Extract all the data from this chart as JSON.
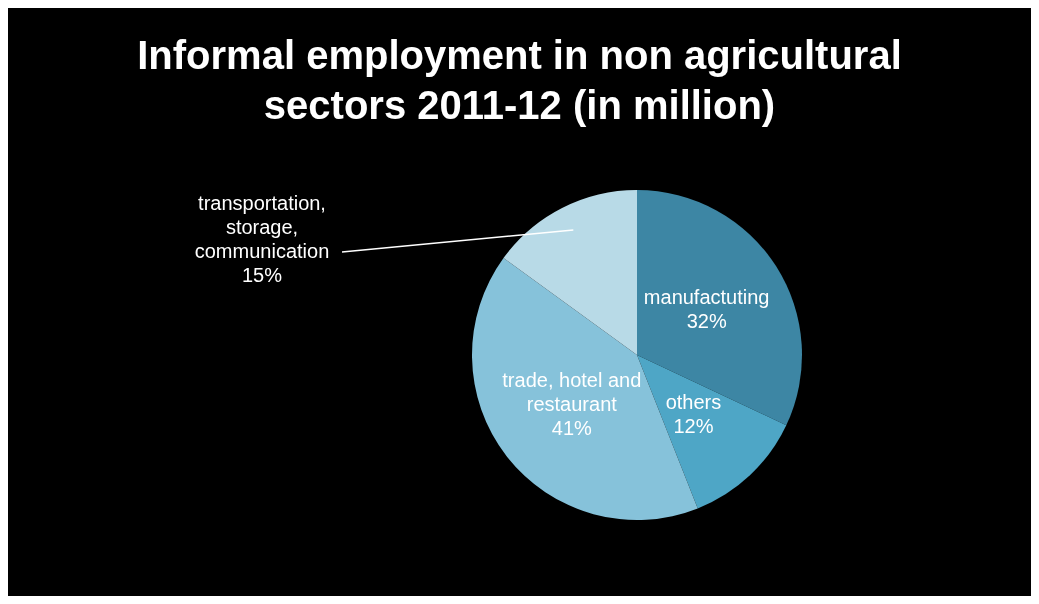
{
  "chart_data": {
    "type": "pie",
    "title": "Informal employment in non agricultural sectors 2011-12 (in million)",
    "categories": [
      "manufactuting",
      "others",
      "trade, hotel and restaurant",
      "transportation, storage, communication"
    ],
    "values": [
      32,
      12,
      41,
      15
    ],
    "value_labels": [
      "32%",
      "12%",
      "41%",
      "15%"
    ],
    "colors": [
      "#3d86a4",
      "#4ea6c6",
      "#86c2da",
      "#b8dae7"
    ],
    "legend": false
  }
}
